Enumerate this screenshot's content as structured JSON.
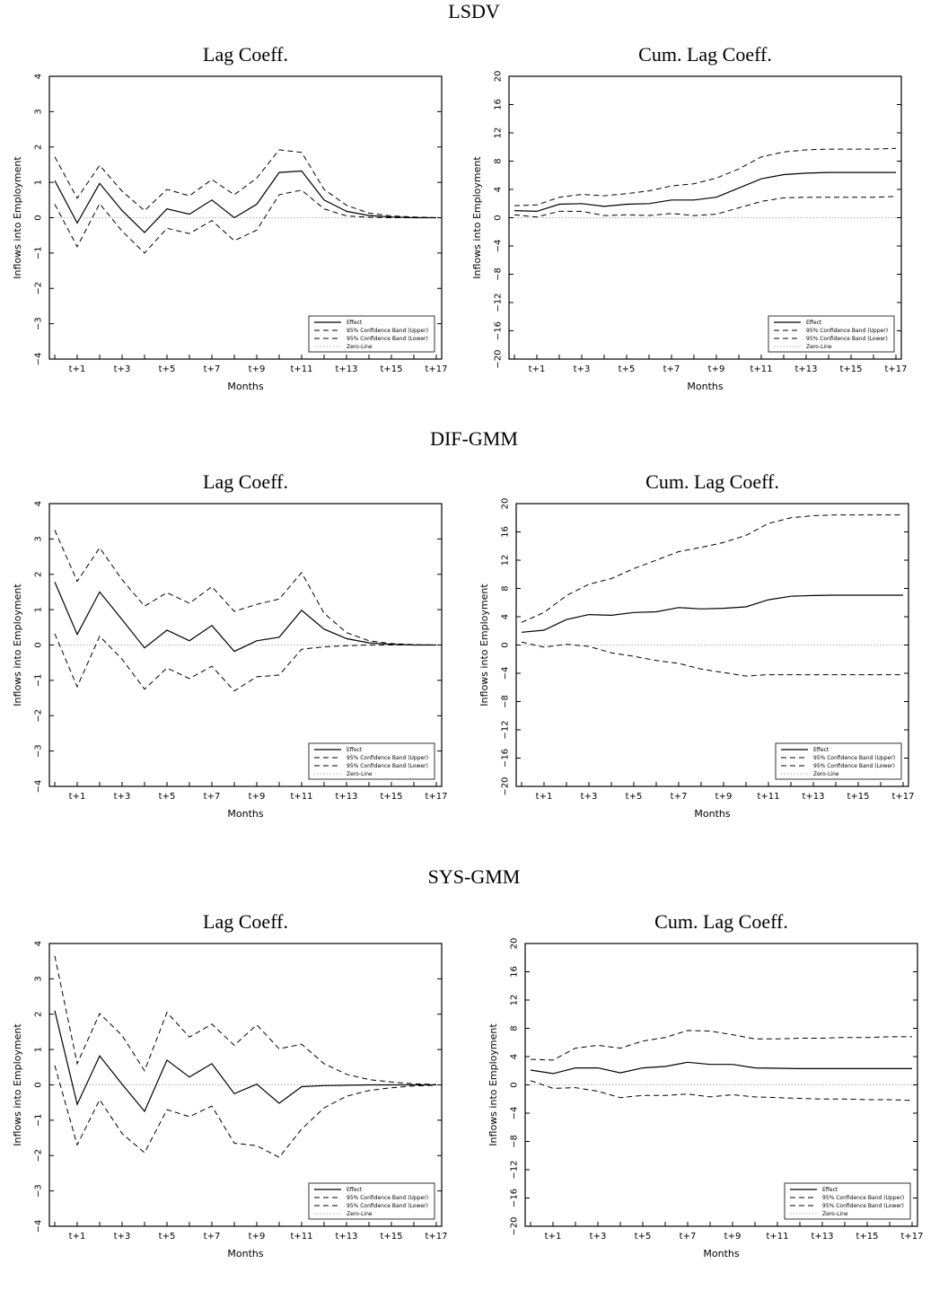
{
  "sections": [
    {
      "title": "LSDV"
    },
    {
      "title": "DIF-GMM"
    },
    {
      "title": "SYS-GMM"
    }
  ],
  "legend": {
    "effect": "Effect",
    "upper": "95% Confidence Band (Upper)",
    "lower": "95% Confidence Band (Lower)",
    "zero": "Zero-Line"
  },
  "colors": {
    "line": "#000000",
    "zero": "#b0b0b0"
  },
  "chart_data": [
    {
      "type": "line",
      "section": "LSDV",
      "title": "Lag Coeff.",
      "xlabel": "Months",
      "ylabel": "Inflows into Employment",
      "ylim": [
        -4,
        4
      ],
      "yticks": [
        -4,
        -3,
        -2,
        -1,
        0,
        1,
        2,
        3,
        4
      ],
      "x": [
        "t",
        "t+1",
        "t+2",
        "t+3",
        "t+4",
        "t+5",
        "t+6",
        "t+7",
        "t+8",
        "t+9",
        "t+10",
        "t+11",
        "t+12",
        "t+13",
        "t+14",
        "t+15",
        "t+16",
        "t+17"
      ],
      "xticklabels": [
        "t+1",
        "t+3",
        "t+5",
        "t+7",
        "t+9",
        "t+11",
        "t+13",
        "t+15",
        "t+17"
      ],
      "series": [
        {
          "name": "Effect",
          "values": [
            1.05,
            -0.15,
            0.97,
            0.2,
            -0.42,
            0.25,
            0.1,
            0.5,
            0.0,
            0.38,
            1.28,
            1.32,
            0.5,
            0.18,
            0.06,
            0.02,
            0.0,
            0.0
          ]
        },
        {
          "name": "95% Confidence Band (Upper)",
          "values": [
            1.72,
            0.55,
            1.48,
            0.75,
            0.2,
            0.8,
            0.62,
            1.08,
            0.65,
            1.12,
            1.92,
            1.85,
            0.8,
            0.35,
            0.13,
            0.05,
            0.02,
            0.0
          ]
        },
        {
          "name": "95% Confidence Band (Lower)",
          "values": [
            0.38,
            -0.82,
            0.4,
            -0.38,
            -1.0,
            -0.3,
            -0.45,
            -0.08,
            -0.65,
            -0.35,
            0.65,
            0.78,
            0.25,
            0.05,
            0.01,
            0.0,
            0.0,
            0.0
          ]
        },
        {
          "name": "Zero-Line",
          "values": [
            0,
            0,
            0,
            0,
            0,
            0,
            0,
            0,
            0,
            0,
            0,
            0,
            0,
            0,
            0,
            0,
            0,
            0
          ]
        }
      ]
    },
    {
      "type": "line",
      "section": "LSDV",
      "title": "Cum. Lag Coeff.",
      "xlabel": "Months",
      "ylabel": "Inflows into Employment",
      "ylim": [
        -20,
        20
      ],
      "yticks": [
        -20,
        -16,
        -12,
        -8,
        -4,
        0,
        4,
        8,
        12,
        16,
        20
      ],
      "x": [
        "t",
        "t+1",
        "t+2",
        "t+3",
        "t+4",
        "t+5",
        "t+6",
        "t+7",
        "t+8",
        "t+9",
        "t+10",
        "t+11",
        "t+12",
        "t+13",
        "t+14",
        "t+15",
        "t+16",
        "t+17"
      ],
      "xticklabels": [
        "t+1",
        "t+3",
        "t+5",
        "t+7",
        "t+9",
        "t+11",
        "t+13",
        "t+15",
        "t+17"
      ],
      "series": [
        {
          "name": "Effect",
          "values": [
            1.0,
            0.9,
            1.9,
            2.0,
            1.6,
            1.9,
            2.0,
            2.5,
            2.5,
            2.9,
            4.2,
            5.5,
            6.1,
            6.3,
            6.4,
            6.4,
            6.4,
            6.4
          ]
        },
        {
          "name": "95% Confidence Band (Upper)",
          "values": [
            1.7,
            1.8,
            2.9,
            3.3,
            3.1,
            3.4,
            3.8,
            4.5,
            4.8,
            5.6,
            6.9,
            8.6,
            9.3,
            9.6,
            9.7,
            9.7,
            9.7,
            9.8
          ]
        },
        {
          "name": "95% Confidence Band (Lower)",
          "values": [
            0.4,
            0.1,
            0.9,
            0.9,
            0.3,
            0.4,
            0.3,
            0.6,
            0.3,
            0.5,
            1.4,
            2.3,
            2.8,
            2.9,
            2.9,
            2.9,
            2.9,
            3.0
          ]
        },
        {
          "name": "Zero-Line",
          "values": [
            0,
            0,
            0,
            0,
            0,
            0,
            0,
            0,
            0,
            0,
            0,
            0,
            0,
            0,
            0,
            0,
            0,
            0
          ]
        }
      ]
    },
    {
      "type": "line",
      "section": "DIF-GMM",
      "title": "Lag Coeff.",
      "xlabel": "Months",
      "ylabel": "Inflows into Employment",
      "ylim": [
        -4,
        4
      ],
      "yticks": [
        -4,
        -3,
        -2,
        -1,
        0,
        1,
        2,
        3,
        4
      ],
      "x": [
        "t",
        "t+1",
        "t+2",
        "t+3",
        "t+4",
        "t+5",
        "t+6",
        "t+7",
        "t+8",
        "t+9",
        "t+10",
        "t+11",
        "t+12",
        "t+13",
        "t+14",
        "t+15",
        "t+16",
        "t+17"
      ],
      "xticklabels": [
        "t+1",
        "t+3",
        "t+5",
        "t+7",
        "t+9",
        "t+11",
        "t+13",
        "t+15",
        "t+17"
      ],
      "series": [
        {
          "name": "Effect",
          "values": [
            1.78,
            0.3,
            1.5,
            0.72,
            -0.08,
            0.42,
            0.12,
            0.55,
            -0.18,
            0.12,
            0.22,
            0.98,
            0.45,
            0.18,
            0.06,
            0.02,
            0.0,
            0.0
          ]
        },
        {
          "name": "95% Confidence Band (Upper)",
          "values": [
            3.25,
            1.8,
            2.75,
            1.85,
            1.1,
            1.48,
            1.18,
            1.65,
            0.95,
            1.15,
            1.3,
            2.05,
            0.9,
            0.35,
            0.12,
            0.04,
            0.01,
            0.0
          ]
        },
        {
          "name": "95% Confidence Band (Lower)",
          "values": [
            0.32,
            -1.18,
            0.25,
            -0.4,
            -1.25,
            -0.65,
            -0.95,
            -0.6,
            -1.3,
            -0.9,
            -0.85,
            -0.12,
            -0.05,
            -0.02,
            0.0,
            0.0,
            0.0,
            0.0
          ]
        },
        {
          "name": "Zero-Line",
          "values": [
            0,
            0,
            0,
            0,
            0,
            0,
            0,
            0,
            0,
            0,
            0,
            0,
            0,
            0,
            0,
            0,
            0,
            0
          ]
        }
      ]
    },
    {
      "type": "line",
      "section": "DIF-GMM",
      "title": "Cum. Lag Coeff.",
      "xlabel": "Months",
      "ylabel": "Inflows into Employment",
      "ylim": [
        -20,
        20
      ],
      "yticks": [
        -20,
        -16,
        -12,
        -8,
        -4,
        0,
        4,
        8,
        12,
        16,
        20
      ],
      "x": [
        "t",
        "t+1",
        "t+2",
        "t+3",
        "t+4",
        "t+5",
        "t+6",
        "t+7",
        "t+8",
        "t+9",
        "t+10",
        "t+11",
        "t+12",
        "t+13",
        "t+14",
        "t+15",
        "t+16",
        "t+17"
      ],
      "xticklabels": [
        "t+1",
        "t+3",
        "t+5",
        "t+7",
        "t+9",
        "t+11",
        "t+13",
        "t+15",
        "t+17"
      ],
      "series": [
        {
          "name": "Effect",
          "values": [
            1.8,
            2.1,
            3.6,
            4.3,
            4.2,
            4.6,
            4.7,
            5.3,
            5.1,
            5.2,
            5.4,
            6.4,
            6.9,
            7.0,
            7.05,
            7.05,
            7.05,
            7.05
          ]
        },
        {
          "name": "95% Confidence Band (Upper)",
          "values": [
            3.2,
            4.6,
            7.0,
            8.6,
            9.4,
            10.8,
            12.0,
            13.2,
            13.8,
            14.5,
            15.5,
            17.2,
            18.0,
            18.3,
            18.4,
            18.4,
            18.4,
            18.4
          ]
        },
        {
          "name": "95% Confidence Band (Lower)",
          "values": [
            0.4,
            -0.3,
            0.1,
            -0.2,
            -1.1,
            -1.6,
            -2.2,
            -2.6,
            -3.4,
            -3.9,
            -4.4,
            -4.2,
            -4.2,
            -4.2,
            -4.2,
            -4.2,
            -4.2,
            -4.2
          ]
        },
        {
          "name": "Zero-Line",
          "values": [
            0,
            0,
            0,
            0,
            0,
            0,
            0,
            0,
            0,
            0,
            0,
            0,
            0,
            0,
            0,
            0,
            0,
            0
          ]
        }
      ]
    },
    {
      "type": "line",
      "section": "SYS-GMM",
      "title": "Lag Coeff.",
      "xlabel": "Months",
      "ylabel": "Inflows into Employment",
      "ylim": [
        -4,
        4
      ],
      "yticks": [
        -4,
        -3,
        -2,
        -1,
        0,
        1,
        2,
        3,
        4
      ],
      "x": [
        "t",
        "t+1",
        "t+2",
        "t+3",
        "t+4",
        "t+5",
        "t+6",
        "t+7",
        "t+8",
        "t+9",
        "t+10",
        "t+11",
        "t+12",
        "t+13",
        "t+14",
        "t+15",
        "t+16",
        "t+17"
      ],
      "xticklabels": [
        "t+1",
        "t+3",
        "t+5",
        "t+7",
        "t+9",
        "t+11",
        "t+13",
        "t+15",
        "t+17"
      ],
      "series": [
        {
          "name": "Effect",
          "values": [
            2.1,
            -0.55,
            0.82,
            0.02,
            -0.75,
            0.7,
            0.22,
            0.6,
            -0.25,
            0.02,
            -0.52,
            -0.05,
            -0.02,
            -0.01,
            0.0,
            0.0,
            0.0,
            0.0
          ]
        },
        {
          "name": "95% Confidence Band (Upper)",
          "values": [
            3.65,
            0.6,
            2.02,
            1.4,
            0.4,
            2.05,
            1.35,
            1.72,
            1.12,
            1.7,
            1.02,
            1.15,
            0.6,
            0.3,
            0.15,
            0.08,
            0.03,
            0.01
          ]
        },
        {
          "name": "95% Confidence Band (Lower)",
          "values": [
            0.55,
            -1.7,
            -0.42,
            -1.38,
            -1.92,
            -0.7,
            -0.9,
            -0.6,
            -1.65,
            -1.72,
            -2.05,
            -1.25,
            -0.65,
            -0.32,
            -0.16,
            -0.08,
            -0.03,
            -0.01
          ]
        },
        {
          "name": "Zero-Line",
          "values": [
            0,
            0,
            0,
            0,
            0,
            0,
            0,
            0,
            0,
            0,
            0,
            0,
            0,
            0,
            0,
            0,
            0,
            0
          ]
        }
      ]
    },
    {
      "type": "line",
      "section": "SYS-GMM",
      "title": "Cum. Lag Coeff.",
      "xlabel": "Months",
      "ylabel": "Inflows into Employment",
      "ylim": [
        -20,
        20
      ],
      "yticks": [
        -20,
        -16,
        -12,
        -8,
        -4,
        0,
        4,
        8,
        12,
        16,
        20
      ],
      "x": [
        "t",
        "t+1",
        "t+2",
        "t+3",
        "t+4",
        "t+5",
        "t+6",
        "t+7",
        "t+8",
        "t+9",
        "t+10",
        "t+11",
        "t+12",
        "t+13",
        "t+14",
        "t+15",
        "t+16",
        "t+17"
      ],
      "xticklabels": [
        "t+1",
        "t+3",
        "t+5",
        "t+7",
        "t+9",
        "t+11",
        "t+13",
        "t+15",
        "t+17"
      ],
      "series": [
        {
          "name": "Effect",
          "values": [
            2.1,
            1.6,
            2.4,
            2.4,
            1.7,
            2.4,
            2.6,
            3.2,
            2.9,
            2.9,
            2.4,
            2.35,
            2.3,
            2.3,
            2.3,
            2.3,
            2.3,
            2.3
          ]
        },
        {
          "name": "95% Confidence Band (Upper)",
          "values": [
            3.6,
            3.5,
            5.2,
            5.6,
            5.2,
            6.2,
            6.7,
            7.7,
            7.6,
            7.1,
            6.5,
            6.5,
            6.6,
            6.6,
            6.7,
            6.7,
            6.8,
            6.8
          ]
        },
        {
          "name": "95% Confidence Band (Lower)",
          "values": [
            0.6,
            -0.5,
            -0.4,
            -0.9,
            -1.8,
            -1.5,
            -1.5,
            -1.3,
            -1.7,
            -1.4,
            -1.7,
            -1.8,
            -1.9,
            -2.0,
            -2.0,
            -2.1,
            -2.1,
            -2.2
          ]
        },
        {
          "name": "Zero-Line",
          "values": [
            0,
            0,
            0,
            0,
            0,
            0,
            0,
            0,
            0,
            0,
            0,
            0,
            0,
            0,
            0,
            0,
            0,
            0
          ]
        }
      ]
    }
  ]
}
